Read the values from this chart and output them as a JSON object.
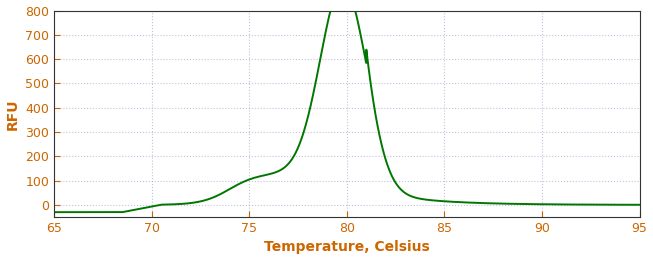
{
  "title": "",
  "xlabel": "Temperature, Celsius",
  "ylabel": "RFU",
  "xlabel_fontsize": 10,
  "ylabel_fontsize": 10,
  "line_color": "#007700",
  "line_width": 1.4,
  "xlim": [
    65,
    95
  ],
  "ylim": [
    -50,
    800
  ],
  "xticks": [
    65,
    70,
    75,
    80,
    85,
    90,
    95
  ],
  "yticks": [
    0,
    100,
    200,
    300,
    400,
    500,
    600,
    700,
    800
  ],
  "tick_color": "#cc6600",
  "label_color": "#cc6600",
  "background_color": "#ffffff",
  "grid_color": "#9999cc",
  "grid_alpha": 0.6,
  "figsize": [
    6.53,
    2.6
  ],
  "dpi": 100
}
